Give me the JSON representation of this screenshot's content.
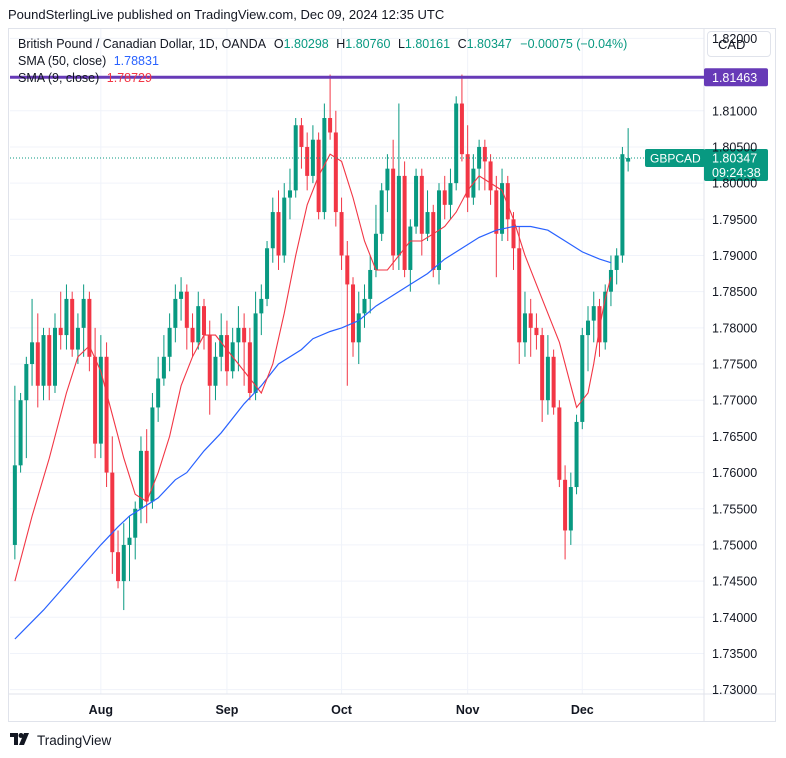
{
  "header": "PoundSterlingLive published on TradingView.com, Dec 09, 2024 12:35 UTC",
  "legend": {
    "symbol": "British Pound / Canadian Dollar, 1D, OANDA",
    "o_label": "O",
    "open": "1.80298",
    "h_label": "H",
    "high": "1.80760",
    "l_label": "L",
    "low": "1.80161",
    "c_label": "C",
    "close": "1.80347",
    "change": "−0.00075 (−0.04%)",
    "sma50_label": "SMA (50, close)",
    "sma50_value": "1.78831",
    "sma9_label": "SMA (9, close)",
    "sma9_value": "1.78729"
  },
  "currency_button": "CAD",
  "footer": {
    "brand": "TradingView",
    "logo": "tradingview-logo-icon"
  },
  "colors": {
    "up": "#089981",
    "down": "#f23645",
    "sma50": "#2962ff",
    "sma9": "#f23645",
    "resistance": "#673ab7"
  },
  "chart_data": {
    "type": "candlestick",
    "y_ticks": [
      "1.73000",
      "1.73500",
      "1.74000",
      "1.74500",
      "1.75000",
      "1.75500",
      "1.76000",
      "1.76500",
      "1.77000",
      "1.77500",
      "1.78000",
      "1.78500",
      "1.79000",
      "1.79500",
      "1.80000",
      "1.80500",
      "1.81000",
      "1.82000"
    ],
    "ylim": [
      1.7294,
      1.8213
    ],
    "x_labels": [
      {
        "label": "Aug",
        "index": 15
      },
      {
        "label": "Sep",
        "index": 37
      },
      {
        "label": "Oct",
        "index": 57
      },
      {
        "label": "Nov",
        "index": 79
      },
      {
        "label": "Dec",
        "index": 99
      }
    ],
    "horizontal_line": {
      "value": 1.81463,
      "label": "1.81463"
    },
    "last_price": {
      "symbol": "GBPCAD",
      "value": 1.80347,
      "label": "1.80347",
      "countdown": "09:24:38"
    },
    "candles": [
      [
        1.75,
        1.772,
        1.748,
        1.761
      ],
      [
        1.761,
        1.771,
        1.76,
        1.77
      ],
      [
        1.77,
        1.776,
        1.762,
        1.775
      ],
      [
        1.775,
        1.784,
        1.772,
        1.778
      ],
      [
        1.778,
        1.782,
        1.769,
        1.772
      ],
      [
        1.772,
        1.78,
        1.77,
        1.779
      ],
      [
        1.779,
        1.78,
        1.77,
        1.772
      ],
      [
        1.772,
        1.782,
        1.771,
        1.78
      ],
      [
        1.78,
        1.785,
        1.777,
        1.779
      ],
      [
        1.779,
        1.786,
        1.777,
        1.784
      ],
      [
        1.784,
        1.785,
        1.776,
        1.777
      ],
      [
        1.777,
        1.782,
        1.775,
        1.78
      ],
      [
        1.78,
        1.786,
        1.776,
        1.784
      ],
      [
        1.784,
        1.785,
        1.774,
        1.776
      ],
      [
        1.776,
        1.78,
        1.762,
        1.764
      ],
      [
        1.764,
        1.779,
        1.762,
        1.776
      ],
      [
        1.776,
        1.778,
        1.758,
        1.76
      ],
      [
        1.76,
        1.765,
        1.746,
        1.749
      ],
      [
        1.749,
        1.752,
        1.744,
        1.745
      ],
      [
        1.745,
        1.753,
        1.741,
        1.75
      ],
      [
        1.75,
        1.754,
        1.745,
        1.751
      ],
      [
        1.751,
        1.756,
        1.748,
        1.755
      ],
      [
        1.755,
        1.765,
        1.753,
        1.763
      ],
      [
        1.763,
        1.766,
        1.753,
        1.756
      ],
      [
        1.756,
        1.771,
        1.755,
        1.769
      ],
      [
        1.769,
        1.776,
        1.767,
        1.773
      ],
      [
        1.773,
        1.779,
        1.772,
        1.776
      ],
      [
        1.776,
        1.782,
        1.774,
        1.78
      ],
      [
        1.78,
        1.786,
        1.778,
        1.784
      ],
      [
        1.784,
        1.787,
        1.781,
        1.785
      ],
      [
        1.785,
        1.786,
        1.777,
        1.78
      ],
      [
        1.78,
        1.782,
        1.776,
        1.778
      ],
      [
        1.778,
        1.785,
        1.777,
        1.783
      ],
      [
        1.783,
        1.784,
        1.777,
        1.779
      ],
      [
        1.779,
        1.781,
        1.768,
        1.772
      ],
      [
        1.772,
        1.778,
        1.77,
        1.776
      ],
      [
        1.776,
        1.782,
        1.774,
        1.779
      ],
      [
        1.779,
        1.781,
        1.772,
        1.774
      ],
      [
        1.774,
        1.78,
        1.773,
        1.778
      ],
      [
        1.778,
        1.783,
        1.774,
        1.78
      ],
      [
        1.78,
        1.782,
        1.772,
        1.778
      ],
      [
        1.778,
        1.78,
        1.77,
        1.771
      ],
      [
        1.771,
        1.785,
        1.77,
        1.782
      ],
      [
        1.782,
        1.786,
        1.779,
        1.784
      ],
      [
        1.784,
        1.792,
        1.783,
        1.791
      ],
      [
        1.791,
        1.798,
        1.789,
        1.796
      ],
      [
        1.796,
        1.799,
        1.788,
        1.79
      ],
      [
        1.79,
        1.8,
        1.789,
        1.798
      ],
      [
        1.798,
        1.802,
        1.795,
        1.799
      ],
      [
        1.799,
        1.809,
        1.798,
        1.808
      ],
      [
        1.808,
        1.809,
        1.802,
        1.805
      ],
      [
        1.805,
        1.807,
        1.799,
        1.801
      ],
      [
        1.801,
        1.808,
        1.8,
        1.806
      ],
      [
        1.806,
        1.807,
        1.795,
        1.796
      ],
      [
        1.796,
        1.811,
        1.795,
        1.809
      ],
      [
        1.809,
        1.815,
        1.806,
        1.807
      ],
      [
        1.807,
        1.81,
        1.794,
        1.796
      ],
      [
        1.796,
        1.798,
        1.788,
        1.79
      ],
      [
        1.79,
        1.792,
        1.772,
        1.786
      ],
      [
        1.786,
        1.787,
        1.776,
        1.778
      ],
      [
        1.778,
        1.785,
        1.775,
        1.782
      ],
      [
        1.782,
        1.786,
        1.78,
        1.784
      ],
      [
        1.784,
        1.79,
        1.782,
        1.788
      ],
      [
        1.788,
        1.797,
        1.787,
        1.793
      ],
      [
        1.793,
        1.8,
        1.792,
        1.799
      ],
      [
        1.799,
        1.804,
        1.796,
        1.802
      ],
      [
        1.802,
        1.806,
        1.788,
        1.79
      ],
      [
        1.79,
        1.811,
        1.788,
        1.801
      ],
      [
        1.801,
        1.803,
        1.787,
        1.788
      ],
      [
        1.788,
        1.795,
        1.785,
        1.794
      ],
      [
        1.794,
        1.802,
        1.793,
        1.801
      ],
      [
        1.801,
        1.802,
        1.79,
        1.793
      ],
      [
        1.793,
        1.799,
        1.792,
        1.796
      ],
      [
        1.796,
        1.797,
        1.787,
        1.788
      ],
      [
        1.788,
        1.8,
        1.786,
        1.799
      ],
      [
        1.799,
        1.801,
        1.795,
        1.797
      ],
      [
        1.797,
        1.802,
        1.795,
        1.8
      ],
      [
        1.8,
        1.812,
        1.799,
        1.811
      ],
      [
        1.811,
        1.815,
        1.803,
        1.804
      ],
      [
        1.804,
        1.808,
        1.796,
        1.798
      ],
      [
        1.798,
        1.804,
        1.797,
        1.802
      ],
      [
        1.802,
        1.806,
        1.799,
        1.805
      ],
      [
        1.805,
        1.806,
        1.799,
        1.803
      ],
      [
        1.803,
        1.804,
        1.797,
        1.799
      ],
      [
        1.799,
        1.801,
        1.787,
        1.793
      ],
      [
        1.793,
        1.802,
        1.792,
        1.8
      ],
      [
        1.8,
        1.801,
        1.792,
        1.795
      ],
      [
        1.795,
        1.796,
        1.788,
        1.791
      ],
      [
        1.791,
        1.794,
        1.775,
        1.778
      ],
      [
        1.778,
        1.785,
        1.776,
        1.782
      ],
      [
        1.782,
        1.784,
        1.776,
        1.78
      ],
      [
        1.78,
        1.782,
        1.777,
        1.779
      ],
      [
        1.779,
        1.78,
        1.767,
        1.77
      ],
      [
        1.77,
        1.779,
        1.768,
        1.776
      ],
      [
        1.776,
        1.777,
        1.768,
        1.769
      ],
      [
        1.769,
        1.77,
        1.758,
        1.759
      ],
      [
        1.759,
        1.761,
        1.748,
        1.752
      ],
      [
        1.752,
        1.76,
        1.75,
        1.758
      ],
      [
        1.758,
        1.768,
        1.757,
        1.767
      ],
      [
        1.767,
        1.78,
        1.766,
        1.779
      ],
      [
        1.779,
        1.783,
        1.774,
        1.781
      ],
      [
        1.781,
        1.785,
        1.778,
        1.783
      ],
      [
        1.783,
        1.784,
        1.776,
        1.778
      ],
      [
        1.778,
        1.786,
        1.777,
        1.785
      ],
      [
        1.785,
        1.79,
        1.783,
        1.788
      ],
      [
        1.788,
        1.791,
        1.786,
        1.79
      ],
      [
        1.79,
        1.805,
        1.789,
        1.804
      ],
      [
        1.80298,
        1.8076,
        1.80161,
        1.80347
      ]
    ],
    "sma50": [
      [
        0,
        1.737
      ],
      [
        5,
        1.741
      ],
      [
        10,
        1.7455
      ],
      [
        15,
        1.75
      ],
      [
        18,
        1.7525
      ],
      [
        20,
        1.754
      ],
      [
        22,
        1.755
      ],
      [
        25,
        1.7565
      ],
      [
        28,
        1.759
      ],
      [
        30,
        1.76
      ],
      [
        33,
        1.763
      ],
      [
        36,
        1.7655
      ],
      [
        40,
        1.7695
      ],
      [
        43,
        1.772
      ],
      [
        46,
        1.775
      ],
      [
        50,
        1.777
      ],
      [
        52,
        1.7785
      ],
      [
        55,
        1.7795
      ],
      [
        57,
        1.78
      ],
      [
        60,
        1.781
      ],
      [
        63,
        1.783
      ],
      [
        66,
        1.7845
      ],
      [
        69,
        1.786
      ],
      [
        72,
        1.7875
      ],
      [
        75,
        1.7895
      ],
      [
        78,
        1.791
      ],
      [
        81,
        1.7925
      ],
      [
        84,
        1.7935
      ],
      [
        87,
        1.794
      ],
      [
        90,
        1.794
      ],
      [
        93,
        1.7935
      ],
      [
        96,
        1.792
      ],
      [
        99,
        1.7905
      ],
      [
        102,
        1.7895
      ],
      [
        104,
        1.789
      ]
    ],
    "sma9": [
      [
        0,
        1.745
      ],
      [
        3,
        1.754
      ],
      [
        6,
        1.762
      ],
      [
        9,
        1.771
      ],
      [
        11,
        1.776
      ],
      [
        13,
        1.7775
      ],
      [
        15,
        1.774
      ],
      [
        17,
        1.768
      ],
      [
        19,
        1.762
      ],
      [
        21,
        1.757
      ],
      [
        23,
        1.756
      ],
      [
        25,
        1.76
      ],
      [
        27,
        1.765
      ],
      [
        29,
        1.772
      ],
      [
        31,
        1.776
      ],
      [
        33,
        1.779
      ],
      [
        35,
        1.779
      ],
      [
        37,
        1.777
      ],
      [
        39,
        1.775
      ],
      [
        41,
        1.773
      ],
      [
        43,
        1.771
      ],
      [
        45,
        1.775
      ],
      [
        47,
        1.782
      ],
      [
        49,
        1.79
      ],
      [
        51,
        1.797
      ],
      [
        53,
        1.801
      ],
      [
        55,
        1.804
      ],
      [
        57,
        1.803
      ],
      [
        59,
        1.798
      ],
      [
        61,
        1.792
      ],
      [
        63,
        1.788
      ],
      [
        65,
        1.788
      ],
      [
        67,
        1.79
      ],
      [
        69,
        1.792
      ],
      [
        71,
        1.792
      ],
      [
        73,
        1.793
      ],
      [
        75,
        1.794
      ],
      [
        77,
        1.796
      ],
      [
        79,
        1.799
      ],
      [
        81,
        1.801
      ],
      [
        83,
        1.8
      ],
      [
        85,
        1.799
      ],
      [
        87,
        1.795
      ],
      [
        89,
        1.79
      ],
      [
        91,
        1.786
      ],
      [
        93,
        1.782
      ],
      [
        95,
        1.778
      ],
      [
        97,
        1.772
      ],
      [
        98,
        1.769
      ],
      [
        99,
        1.77
      ],
      [
        100,
        1.771
      ],
      [
        101,
        1.775
      ],
      [
        102,
        1.78
      ],
      [
        103,
        1.784
      ],
      [
        104,
        1.787
      ]
    ]
  }
}
